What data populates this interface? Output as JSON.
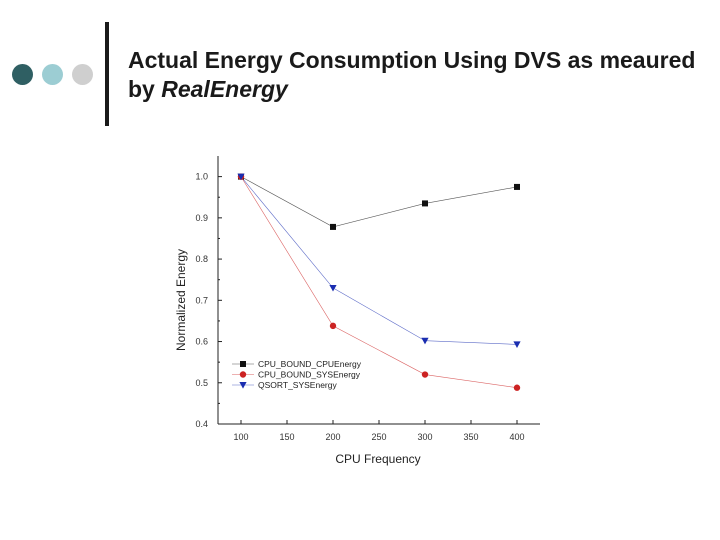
{
  "slide": {
    "title_main": "Actual Energy Consumption Using DVS as meaured by ",
    "title_emph": "RealEnergy"
  },
  "colors": {
    "dot1": "#2f5f63",
    "dot2": "#9ccdd3",
    "dot3": "#cfcfcf"
  },
  "chart_data": {
    "type": "line",
    "title": "",
    "xlabel": "CPU Frequency",
    "ylabel": "Normalized Energy",
    "xlim": [
      75,
      425
    ],
    "ylim": [
      0.4,
      1.05
    ],
    "xticks": [
      100,
      150,
      200,
      250,
      300,
      350,
      400
    ],
    "yticks": [
      0.4,
      0.5,
      0.6,
      0.7,
      0.8,
      0.9,
      1.0
    ],
    "ytick_labels": [
      "0.4",
      "0.5",
      "0.6",
      "0.7",
      "0.8",
      "0.9",
      "1.0"
    ],
    "x": [
      100,
      200,
      300,
      400
    ],
    "series": [
      {
        "name": "CPU_BOUND_CPUEnergy",
        "values": [
          1.0,
          0.878,
          0.935,
          0.975
        ],
        "color": "#111111",
        "marker": "square"
      },
      {
        "name": "CPU_BOUND_SYSEnergy",
        "values": [
          1.0,
          0.638,
          0.52,
          0.488
        ],
        "color": "#cc2222",
        "marker": "circle"
      },
      {
        "name": "QSORT_SYSEnergy",
        "values": [
          1.0,
          0.73,
          0.602,
          0.593
        ],
        "color": "#1a2db0",
        "marker": "triangle-down"
      }
    ],
    "legend_position": "bottom-left"
  }
}
